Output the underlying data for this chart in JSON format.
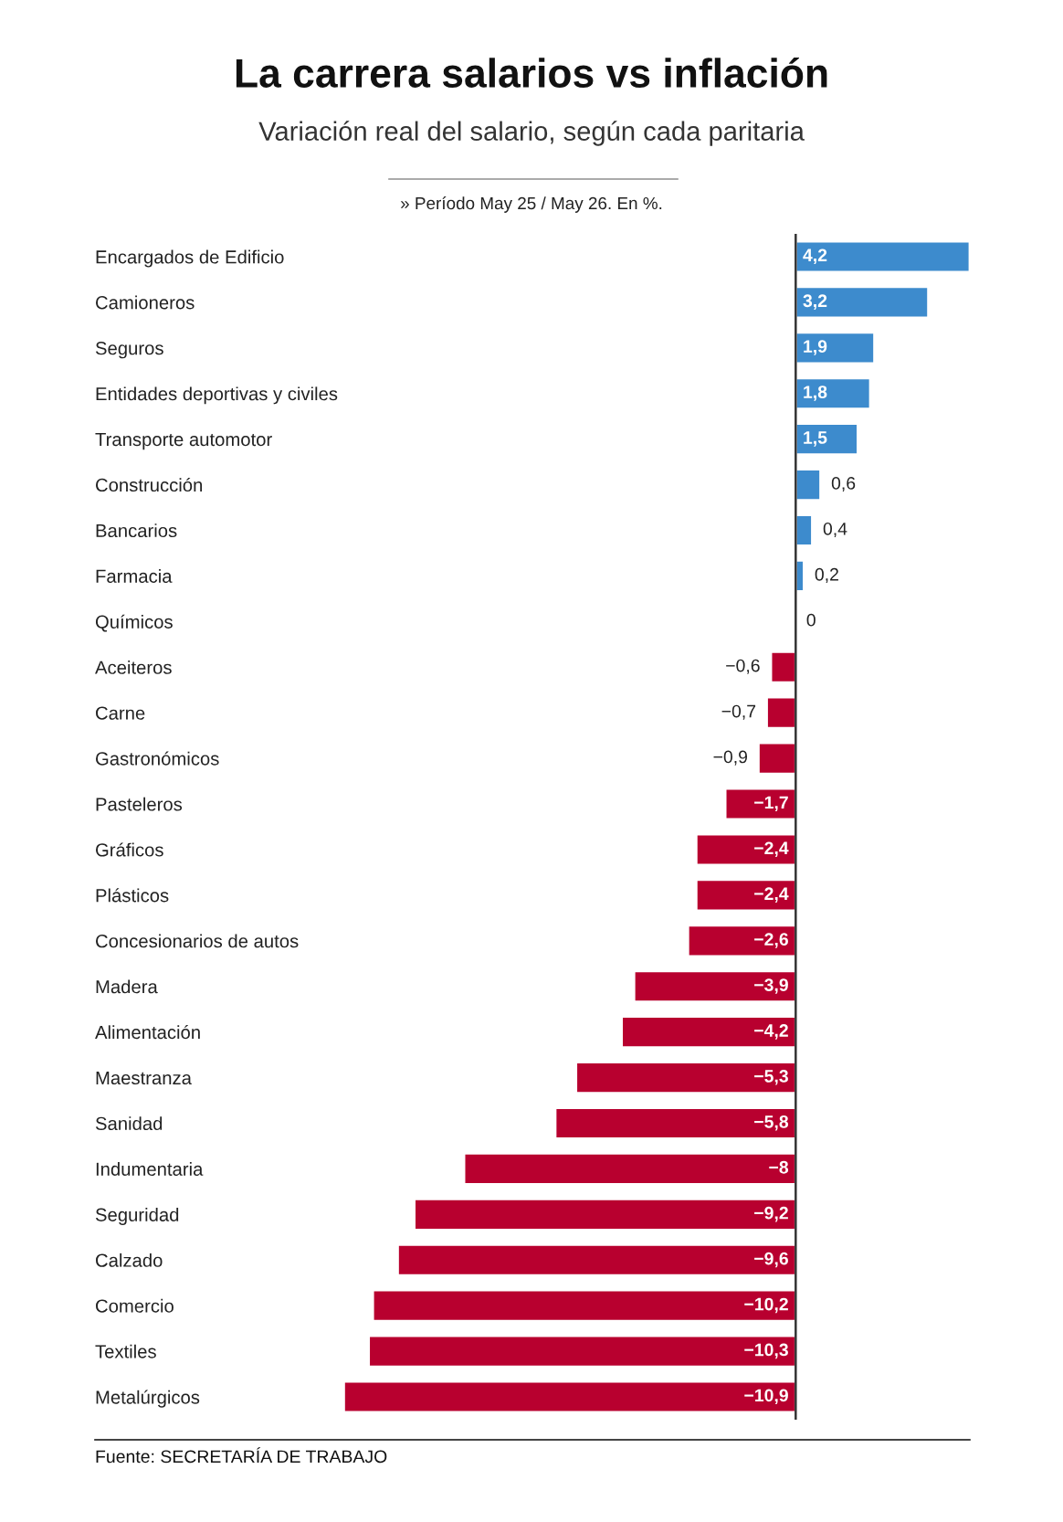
{
  "chart_data": {
    "type": "bar",
    "orientation": "horizontal",
    "title": "La carrera salarios vs inflación",
    "subtitle": "Variación real del salario, según cada paritaria",
    "annotations": [
      "» Período May 25 / May 26. En %.",
      "Fuente: SECRETARÍA DE TRABAJO"
    ],
    "categories": [
      "Encargados de Edificio",
      "Camioneros",
      "Seguros",
      "Entidades deportivas y civiles",
      "Transporte automotor",
      "Construcción",
      "Bancarios",
      "Farmacia",
      "Químicos",
      "Aceiteros",
      "Carne",
      "Gastronómicos",
      "Pasteleros",
      "Gráficos",
      "Plásticos",
      "Concesionarios de autos",
      "Madera",
      "Alimentación",
      "Maestranza",
      "Sanidad",
      "Indumentaria",
      "Seguridad",
      "Calzado",
      "Comercio",
      "Textiles",
      "Metalúrgicos"
    ],
    "values": [
      4.2,
      3.2,
      1.9,
      1.8,
      1.5,
      0.6,
      0.4,
      0.2,
      0,
      -0.6,
      -0.7,
      -0.9,
      -1.7,
      -2.4,
      -2.4,
      -2.6,
      -3.9,
      -4.2,
      -5.3,
      -5.8,
      -8,
      -9.2,
      -9.6,
      -10.2,
      -10.3,
      -10.9
    ],
    "value_labels": [
      "4,2",
      "3,2",
      "1,9",
      "1,8",
      "1,5",
      "0,6",
      "0,4",
      "0,2",
      "0",
      "−0,6",
      "−0,7",
      "−0,9",
      "−1,7",
      "−2,4",
      "−2,4",
      "−2,6",
      "−3,9",
      "−4,2",
      "−5,3",
      "−5,8",
      "−8",
      "−9,2",
      "−9,6",
      "−10,2",
      "−10,3",
      "−10,9"
    ],
    "colors": [
      "#3d8bcd",
      "#3d8bcd",
      "#3d8bcd",
      "#3d8bcd",
      "#3d8bcd",
      "#3d8bcd",
      "#3d8bcd",
      "#3d8bcd",
      null,
      "#b8002f",
      "#b8002f",
      "#b8002f",
      "#b8002f",
      "#b8002f",
      "#b8002f",
      "#b8002f",
      "#b8002f",
      "#b8002f",
      "#b8002f",
      "#b8002f",
      "#b8002f",
      "#b8002f",
      "#b8002f",
      "#b8002f",
      "#b8002f",
      "#b8002f"
    ],
    "xlim": [
      -16.9,
      4.2
    ],
    "tick_labels": "y",
    "ref_lines": [
      {
        "axis": "x",
        "value": 0,
        "color": "#333333"
      }
    ]
  }
}
